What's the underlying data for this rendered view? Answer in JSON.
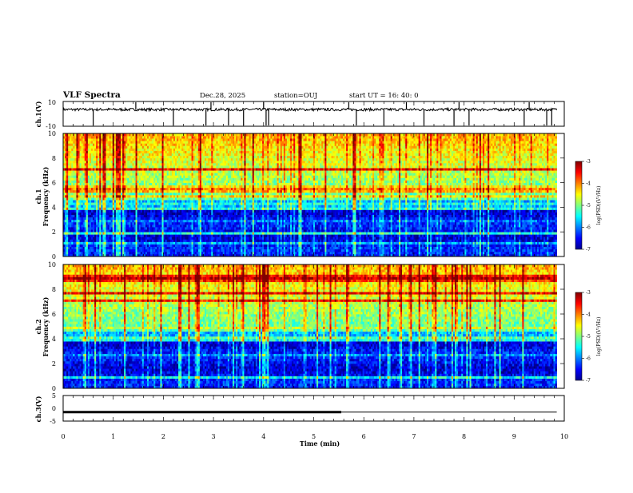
{
  "header": {
    "title": "VLF Spectra",
    "date": "Dec.28, 2025",
    "station": "station=OUJ",
    "start": "start  UT  =   16: 40: 0"
  },
  "chart_data": [
    {
      "type": "line",
      "name": "ch1-waveform",
      "ylabel": "ch.1(V)",
      "ylim": [
        -10,
        10
      ],
      "y_ticks": [
        "10",
        "-10"
      ],
      "xlim": [
        0,
        10
      ],
      "baseline": 3.5,
      "spikes_min": [
        0.6,
        1.45,
        2.2,
        2.85,
        2.95,
        3.3,
        3.6,
        4.0,
        4.05,
        4.1,
        5.7,
        5.85,
        6.4,
        6.85,
        7.2,
        7.8,
        7.9,
        8.1,
        9.2,
        9.3,
        9.65,
        9.75
      ]
    },
    {
      "type": "heatmap",
      "name": "ch1-spectrogram",
      "ylabel_1": "ch.1",
      "ylabel_2": "Frequency (kHz)",
      "xlim": [
        0,
        9.85
      ],
      "ylim": [
        0,
        10
      ],
      "y_ticks": [
        "0",
        "2",
        "4",
        "6",
        "8",
        "10"
      ],
      "colorbar": {
        "label": "log(PSD)(V²/Hz)",
        "ticks": [
          "-3",
          "-4",
          "-5",
          "-6",
          "-7"
        ],
        "range": [
          -7,
          -3
        ]
      }
    },
    {
      "type": "heatmap",
      "name": "ch2-spectrogram",
      "ylabel_1": "ch.2",
      "ylabel_2": "Frequency (kHz)",
      "xlim": [
        0,
        9.85
      ],
      "ylim": [
        0,
        10
      ],
      "y_ticks": [
        "0",
        "2",
        "4",
        "6",
        "8",
        "10"
      ],
      "colorbar": {
        "label": "log(PSD)(V²/Hz)",
        "ticks": [
          "-3",
          "-4",
          "-5",
          "-6",
          "-7"
        ],
        "range": [
          -7,
          -3
        ]
      }
    },
    {
      "type": "line",
      "name": "ch3-channel",
      "ylabel": "ch.3(V)",
      "ylim": [
        -5,
        5
      ],
      "y_ticks": [
        "5",
        "0",
        "-5"
      ],
      "xlim": [
        0,
        10
      ],
      "value": -1.5,
      "thick_until_min": 5.55
    }
  ],
  "xaxis": {
    "label": "Time (min)",
    "ticks": [
      "0",
      "1",
      "2",
      "3",
      "4",
      "5",
      "6",
      "7",
      "8",
      "9",
      "10"
    ],
    "xlim": [
      0,
      10
    ]
  }
}
